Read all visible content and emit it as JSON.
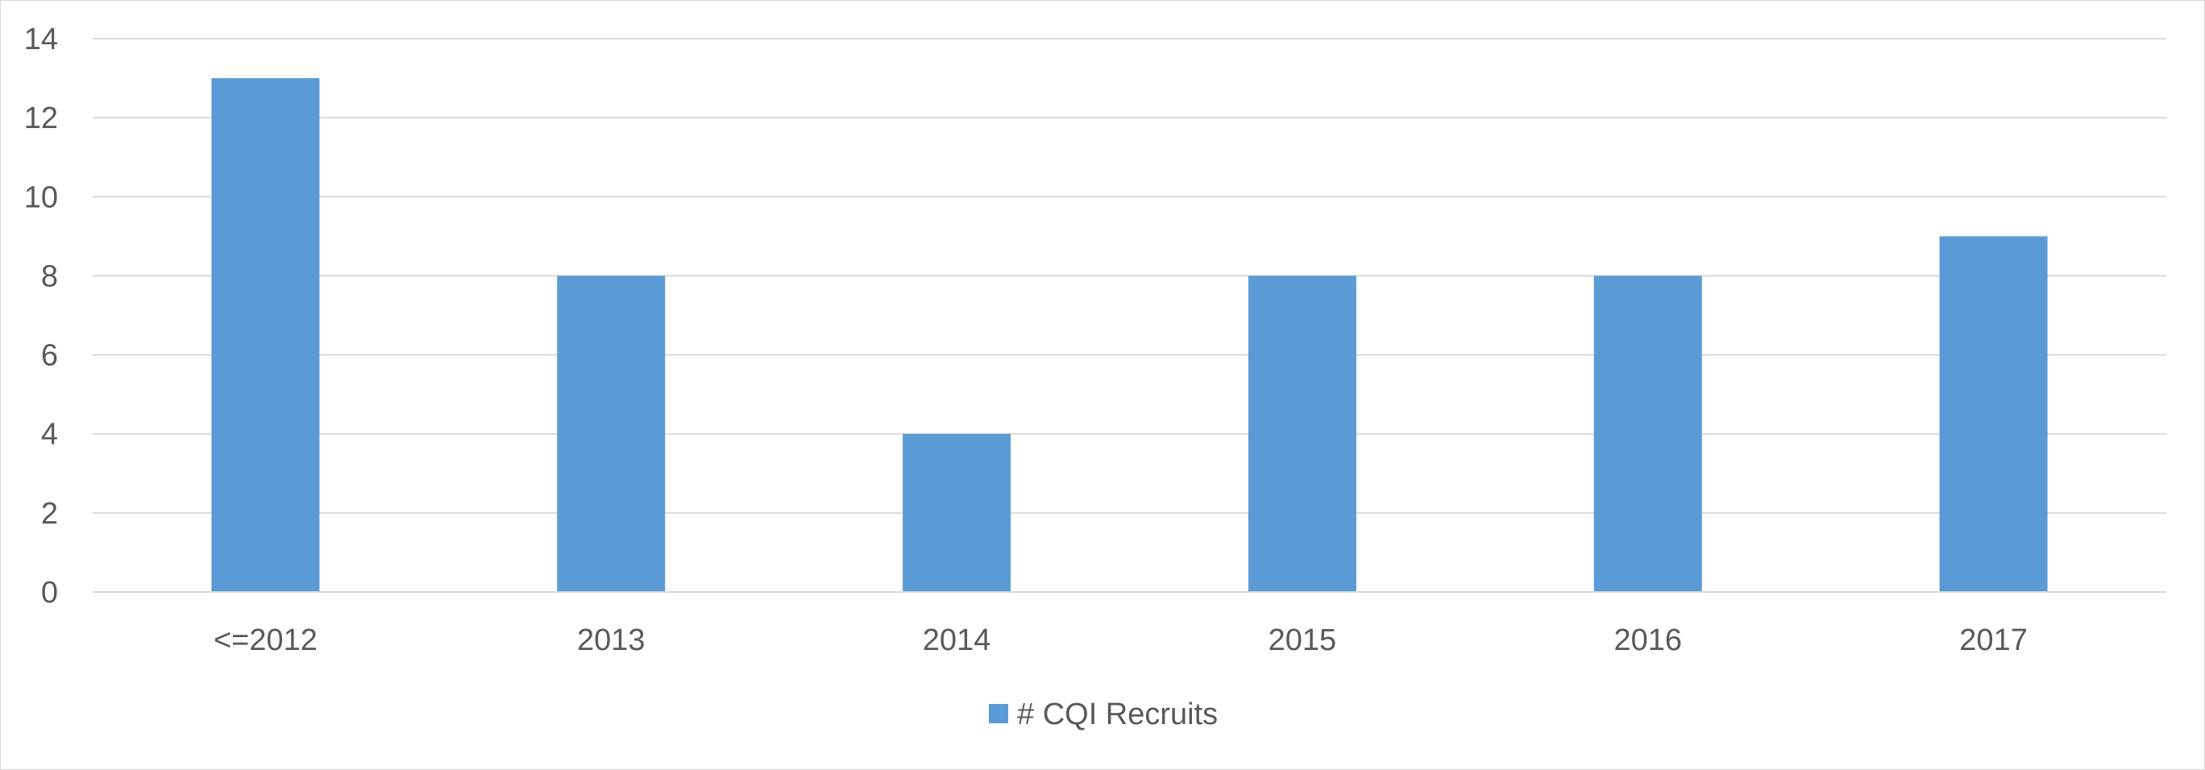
{
  "chart_data": {
    "type": "bar",
    "categories": [
      "<=2012",
      "2013",
      "2014",
      "2015",
      "2016",
      "2017"
    ],
    "series": [
      {
        "name": "# CQI Recruits",
        "values": [
          13,
          8,
          4,
          8,
          8,
          9
        ],
        "color": "#5b9bd5"
      }
    ],
    "ylim": [
      0,
      14
    ],
    "yticks": [
      0,
      2,
      4,
      6,
      8,
      10,
      12,
      14
    ],
    "title": "",
    "xlabel": "",
    "ylabel": "",
    "grid": true,
    "legend_position": "bottom"
  }
}
